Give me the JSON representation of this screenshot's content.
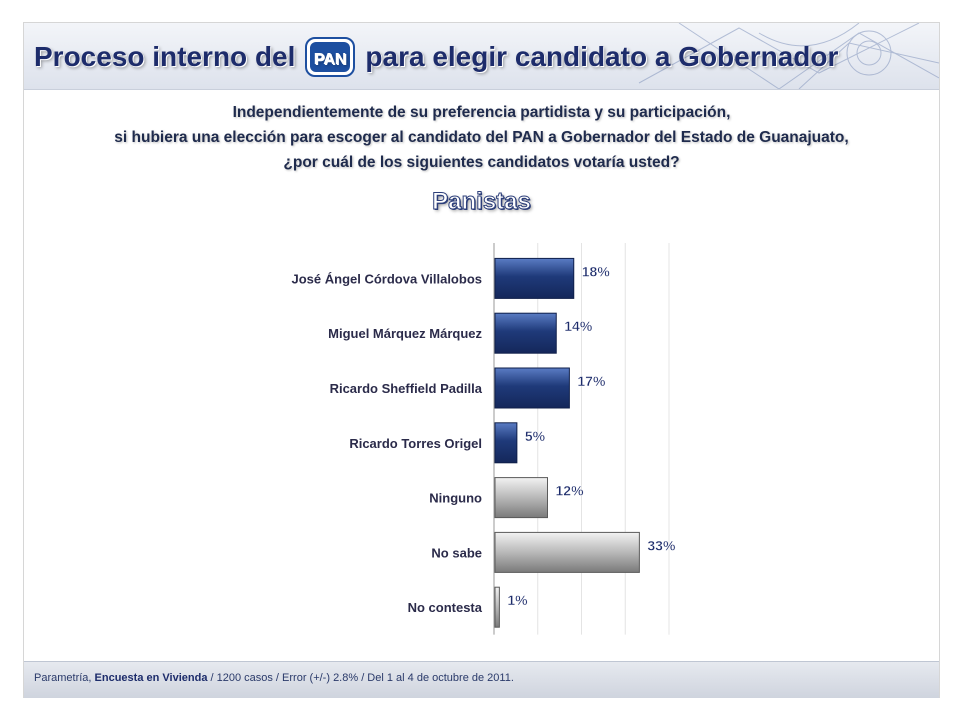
{
  "header": {
    "title_before": "Proceso interno del",
    "logo_text": "PAN",
    "title_after": "para elegir candidato a Gobernador"
  },
  "question": {
    "line1": "Independientemente de su preferencia partidista y su participación,",
    "line2": "si hubiera una elección para escoger al candidato del PAN a Gobernador del Estado de Guanajuato,",
    "line3": "¿por cuál de los siguientes candidatos votaría usted?"
  },
  "subtitle": "Panistas",
  "footer": {
    "source": "Parametría,",
    "method": "Encuesta en Vivienda",
    "details": "/ 1200 casos / Error (+/-) 2.8% / Del 1 al 4 de octubre de 2011."
  },
  "colors": {
    "candidate_bar": "#1f3a7a",
    "other_bar": "#9a9a9a",
    "title": "#1d2c6b"
  },
  "chart_data": {
    "type": "bar",
    "orientation": "horizontal",
    "categories": [
      "José Ángel Córdova Villalobos",
      "Miguel Márquez Márquez",
      "Ricardo Sheffield Padilla",
      "Ricardo Torres Origel",
      "Ninguno",
      "No sabe",
      "No contesta"
    ],
    "values": [
      18,
      14,
      17,
      5,
      12,
      33,
      1
    ],
    "value_labels": [
      "18%",
      "14%",
      "17%",
      "5%",
      "12%",
      "33%",
      "1%"
    ],
    "bar_groups": [
      "candidate",
      "candidate",
      "candidate",
      "candidate",
      "other",
      "other",
      "other"
    ],
    "xlim": [
      0,
      40
    ],
    "xticks": [
      0,
      10,
      20,
      30,
      40
    ],
    "grid": true,
    "legend": "none"
  }
}
